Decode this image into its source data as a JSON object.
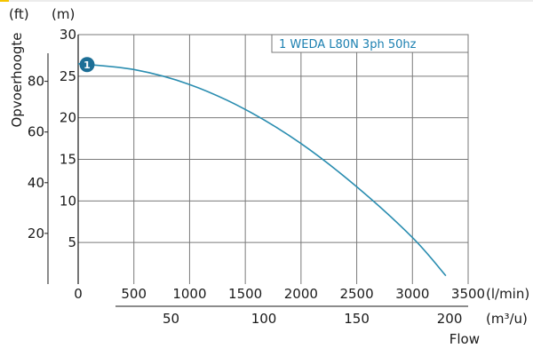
{
  "chart_data": {
    "type": "line",
    "xlabel": "Flow",
    "ylabel": "Opvoerhoogte",
    "x_unit": "(l/min)",
    "x2_unit": "(m³/u)",
    "y_unit": "(m)",
    "y2_unit": "(ft)",
    "xlim": [
      0,
      3500
    ],
    "ylim": [
      0,
      30
    ],
    "x_ticks": [
      0,
      500,
      1000,
      1500,
      2000,
      2500,
      3000,
      3500
    ],
    "y_ticks": [
      5,
      10,
      15,
      20,
      25,
      30
    ],
    "x2_ticks": [
      50,
      100,
      150,
      200
    ],
    "y2_ticks": [
      20,
      40,
      60,
      80
    ],
    "grid": true,
    "legend_position": "top-right",
    "series": [
      {
        "name": "1 WEDA L80N 3ph 50hz",
        "badge": "1",
        "color": "#2a8db0",
        "x": [
          0,
          500,
          1000,
          1500,
          2000,
          2500,
          3000,
          3300
        ],
        "y": [
          26.5,
          25.8,
          24.0,
          21.0,
          16.9,
          11.7,
          5.6,
          1.0
        ]
      }
    ]
  },
  "colors": {
    "accent_bar": "#f5c400",
    "grid": "#7a7a7a",
    "axis": "#1a1a1a"
  }
}
